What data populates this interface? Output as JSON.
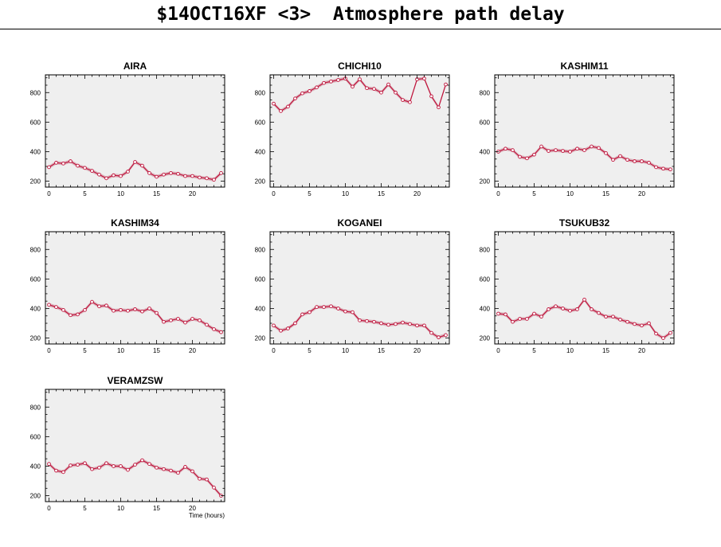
{
  "title": "$14OCT16XF <3>  Atmosphere path delay",
  "colors": {
    "line": "#c0143c",
    "band": "#d4a3ad",
    "panel_bg": "#efefef",
    "marker_fill": "#ffffff"
  },
  "chart_data": [
    {
      "type": "line",
      "title": "AIRA",
      "xlabel": "",
      "xlim": [
        -0.5,
        24.5
      ],
      "ylim": [
        160,
        920
      ],
      "xticks": [
        0,
        5,
        10,
        15,
        20
      ],
      "yticks": [
        200,
        400,
        600,
        800
      ],
      "x": [
        0,
        1,
        2,
        3,
        4,
        5,
        6,
        7,
        8,
        9,
        10,
        11,
        12,
        13,
        14,
        15,
        16,
        17,
        18,
        19,
        20,
        21,
        22,
        23,
        24
      ],
      "y": [
        295,
        325,
        320,
        335,
        305,
        290,
        270,
        245,
        220,
        240,
        235,
        265,
        330,
        305,
        255,
        230,
        245,
        255,
        250,
        235,
        235,
        225,
        220,
        210,
        255
      ]
    },
    {
      "type": "line",
      "title": "CHICHI10",
      "xlabel": "",
      "xlim": [
        -0.5,
        24.5
      ],
      "ylim": [
        160,
        920
      ],
      "xticks": [
        0,
        5,
        10,
        15,
        20
      ],
      "yticks": [
        200,
        400,
        600,
        800
      ],
      "x": [
        0,
        1,
        2,
        3,
        4,
        5,
        6,
        7,
        8,
        9,
        10,
        11,
        12,
        13,
        14,
        15,
        16,
        17,
        18,
        19,
        20,
        21,
        22,
        23,
        24
      ],
      "y": [
        725,
        675,
        705,
        760,
        795,
        810,
        835,
        865,
        875,
        885,
        895,
        840,
        890,
        830,
        825,
        800,
        855,
        800,
        750,
        735,
        890,
        895,
        775,
        700,
        855
      ]
    },
    {
      "type": "line",
      "title": "KASHIM11",
      "xlabel": "",
      "xlim": [
        -0.5,
        24.5
      ],
      "ylim": [
        160,
        920
      ],
      "xticks": [
        0,
        5,
        10,
        15,
        20
      ],
      "yticks": [
        200,
        400,
        600,
        800
      ],
      "x": [
        0,
        1,
        2,
        3,
        4,
        5,
        6,
        7,
        8,
        9,
        10,
        11,
        12,
        13,
        14,
        15,
        16,
        17,
        18,
        19,
        20,
        21,
        22,
        23,
        24
      ],
      "y": [
        400,
        420,
        410,
        365,
        355,
        380,
        435,
        405,
        410,
        405,
        400,
        420,
        410,
        435,
        425,
        390,
        345,
        370,
        345,
        335,
        335,
        325,
        295,
        285,
        280
      ]
    },
    {
      "type": "line",
      "title": "KASHIM34",
      "xlabel": "",
      "xlim": [
        -0.5,
        24.5
      ],
      "ylim": [
        160,
        920
      ],
      "xticks": [
        0,
        5,
        10,
        15,
        20
      ],
      "yticks": [
        200,
        400,
        600,
        800
      ],
      "x": [
        0,
        1,
        2,
        3,
        4,
        5,
        6,
        7,
        8,
        9,
        10,
        11,
        12,
        13,
        14,
        15,
        16,
        17,
        18,
        19,
        20,
        21,
        22,
        23,
        24
      ],
      "y": [
        425,
        410,
        390,
        355,
        360,
        390,
        445,
        415,
        420,
        385,
        390,
        385,
        395,
        380,
        400,
        370,
        310,
        320,
        330,
        305,
        330,
        320,
        290,
        260,
        240
      ]
    },
    {
      "type": "line",
      "title": "KOGANEI",
      "xlabel": "",
      "xlim": [
        -0.5,
        24.5
      ],
      "ylim": [
        160,
        920
      ],
      "xticks": [
        0,
        5,
        10,
        15,
        20
      ],
      "yticks": [
        200,
        400,
        600,
        800
      ],
      "x": [
        0,
        1,
        2,
        3,
        4,
        5,
        6,
        7,
        8,
        9,
        10,
        11,
        12,
        13,
        14,
        15,
        16,
        17,
        18,
        19,
        20,
        21,
        22,
        23,
        24
      ],
      "y": [
        285,
        250,
        265,
        300,
        360,
        375,
        410,
        410,
        415,
        400,
        380,
        375,
        320,
        315,
        310,
        300,
        290,
        295,
        305,
        295,
        285,
        285,
        235,
        205,
        220
      ]
    },
    {
      "type": "line",
      "title": "TSUKUB32",
      "xlabel": "",
      "xlim": [
        -0.5,
        24.5
      ],
      "ylim": [
        160,
        920
      ],
      "xticks": [
        0,
        5,
        10,
        15,
        20
      ],
      "yticks": [
        200,
        400,
        600,
        800
      ],
      "x": [
        0,
        1,
        2,
        3,
        4,
        5,
        6,
        7,
        8,
        9,
        10,
        11,
        12,
        13,
        14,
        15,
        16,
        17,
        18,
        19,
        20,
        21,
        22,
        23,
        24
      ],
      "y": [
        365,
        360,
        310,
        330,
        330,
        365,
        345,
        395,
        415,
        400,
        385,
        395,
        460,
        395,
        370,
        345,
        345,
        325,
        310,
        295,
        285,
        300,
        230,
        200,
        235
      ]
    },
    {
      "type": "line",
      "title": "VERAMZSW",
      "xlabel": "Time (hours)",
      "xlim": [
        -0.5,
        24.5
      ],
      "ylim": [
        160,
        920
      ],
      "xticks": [
        0,
        5,
        10,
        15,
        20
      ],
      "yticks": [
        200,
        400,
        600,
        800
      ],
      "x": [
        0,
        1,
        2,
        3,
        4,
        5,
        6,
        7,
        8,
        9,
        10,
        11,
        12,
        13,
        14,
        15,
        16,
        17,
        18,
        19,
        20,
        21,
        22,
        23,
        24
      ],
      "y": [
        415,
        370,
        360,
        405,
        410,
        420,
        380,
        390,
        420,
        400,
        400,
        375,
        410,
        440,
        415,
        390,
        380,
        370,
        355,
        395,
        365,
        315,
        310,
        255,
        200
      ]
    }
  ]
}
